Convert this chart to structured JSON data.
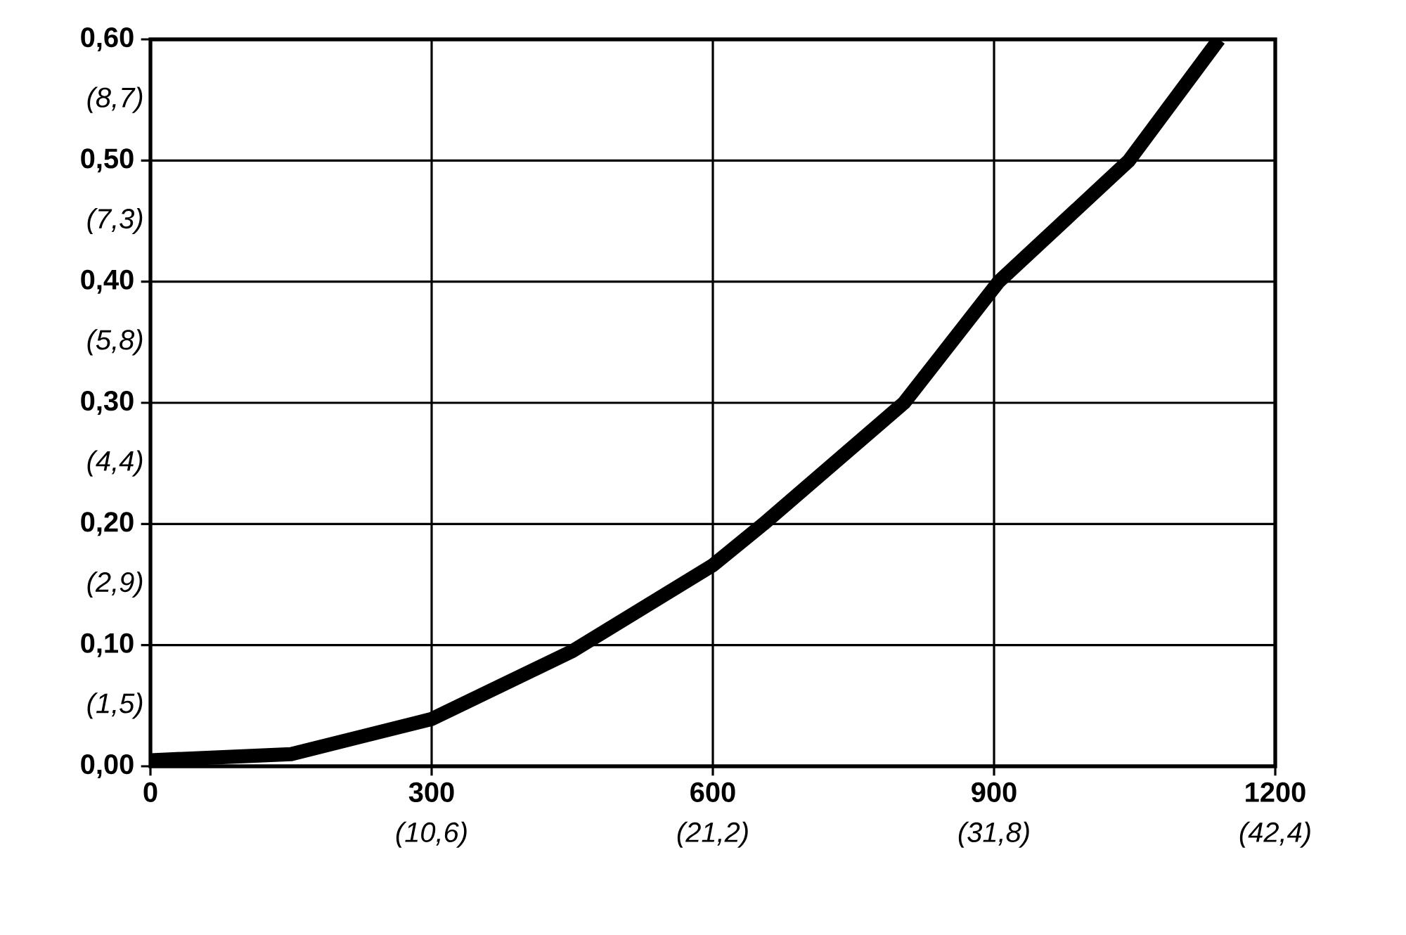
{
  "chart_data": {
    "type": "line",
    "x": [
      0,
      150,
      300,
      450,
      600,
      654,
      804,
      905,
      1044,
      1140
    ],
    "series": [
      {
        "color": "#000000",
        "values": [
          0.005,
          0.01,
          0.039,
          0.095,
          0.166,
          0.2,
          0.3,
          0.4,
          0.5,
          0.6
        ]
      }
    ],
    "xlim": [
      0,
      1200
    ],
    "xticks": [
      0,
      300,
      600,
      900,
      1200
    ],
    "ylim": [
      0,
      0.6
    ],
    "yticks": [
      {
        "value": 0,
        "label": "0,00"
      },
      {
        "value": 0.1,
        "label": "0,10"
      },
      {
        "value": 0.2,
        "label": "0,20"
      },
      {
        "value": 0.3,
        "label": "0,30"
      },
      {
        "value": 0.4,
        "label": "0,40"
      },
      {
        "value": 0.5,
        "label": "0,50"
      },
      {
        "value": 0.6,
        "label": "0,60"
      }
    ],
    "x2lim": [
      0,
      42.4
    ],
    "x2ticks": [
      {
        "value": 10.6,
        "label": "(10,6)"
      },
      {
        "value": 21.2,
        "label": "(21,2)"
      },
      {
        "value": 31.8,
        "label": "(31,8)"
      },
      {
        "value": 42.4,
        "label": "(42,4)"
      }
    ],
    "y2lim": [
      0.725,
      9.425
    ],
    "y2ticks": [
      {
        "value": 1.45,
        "label": "(1,5)"
      },
      {
        "value": 2.9,
        "label": "(2,9)"
      },
      {
        "value": 4.35,
        "label": "(4,4)"
      },
      {
        "value": 5.8,
        "label": "(5,8)"
      },
      {
        "value": 7.25,
        "label": "(7,3)"
      },
      {
        "value": 8.7,
        "label": "(8,7)"
      }
    ],
    "grid": true,
    "marker": "none",
    "line_style": "solid"
  }
}
